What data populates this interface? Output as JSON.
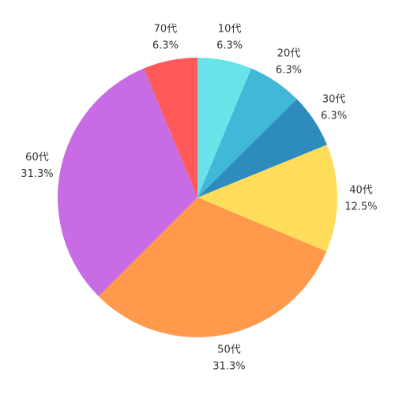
{
  "chart_data": {
    "type": "pie",
    "categories": [
      "10代",
      "20代",
      "30代",
      "40代",
      "50代",
      "60代",
      "70代"
    ],
    "values": [
      6.3,
      6.3,
      6.3,
      12.5,
      31.3,
      31.3,
      6.3
    ],
    "value_labels": [
      "6.3%",
      "6.3%",
      "6.3%",
      "12.5%",
      "31.3%",
      "31.3%",
      "6.3%"
    ],
    "colors": [
      "#6ae3e8",
      "#42b8d8",
      "#2e8bbd",
      "#ffdd5a",
      "#ff9a4d",
      "#c86ce6",
      "#ff5a5a"
    ]
  }
}
